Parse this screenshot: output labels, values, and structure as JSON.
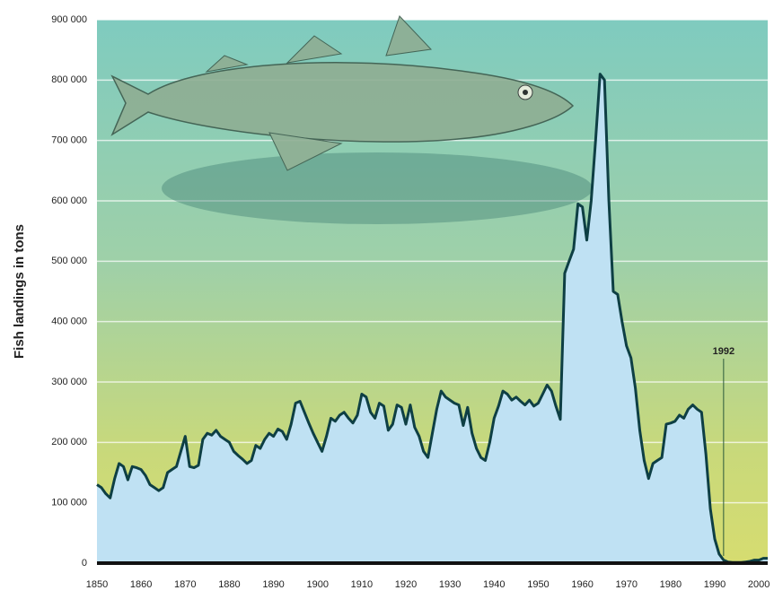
{
  "chart_data": {
    "type": "area",
    "y_label": "Fish landings in tons",
    "x": [
      1850,
      1851,
      1852,
      1853,
      1854,
      1855,
      1856,
      1857,
      1858,
      1859,
      1860,
      1861,
      1862,
      1863,
      1864,
      1865,
      1866,
      1867,
      1868,
      1869,
      1870,
      1871,
      1872,
      1873,
      1874,
      1875,
      1876,
      1877,
      1878,
      1879,
      1880,
      1881,
      1882,
      1883,
      1884,
      1885,
      1886,
      1887,
      1888,
      1889,
      1890,
      1891,
      1892,
      1893,
      1894,
      1895,
      1896,
      1897,
      1898,
      1899,
      1900,
      1901,
      1902,
      1903,
      1904,
      1905,
      1906,
      1907,
      1908,
      1909,
      1910,
      1911,
      1912,
      1913,
      1914,
      1915,
      1916,
      1917,
      1918,
      1919,
      1920,
      1921,
      1922,
      1923,
      1924,
      1925,
      1926,
      1927,
      1928,
      1929,
      1930,
      1931,
      1932,
      1933,
      1934,
      1935,
      1936,
      1937,
      1938,
      1939,
      1940,
      1941,
      1942,
      1943,
      1944,
      1945,
      1946,
      1947,
      1948,
      1949,
      1950,
      1951,
      1952,
      1953,
      1954,
      1955,
      1956,
      1957,
      1958,
      1959,
      1960,
      1961,
      1962,
      1963,
      1964,
      1965,
      1966,
      1967,
      1968,
      1969,
      1970,
      1971,
      1972,
      1973,
      1974,
      1975,
      1976,
      1977,
      1978,
      1979,
      1980,
      1981,
      1982,
      1983,
      1984,
      1985,
      1986,
      1987,
      1988,
      1989,
      1990,
      1991,
      1992,
      1993,
      1994,
      1995,
      1996,
      1997,
      1998,
      1999,
      2000,
      2001,
      2002
    ],
    "values": [
      130000,
      125000,
      115000,
      108000,
      140000,
      165000,
      160000,
      138000,
      160000,
      158000,
      155000,
      145000,
      130000,
      125000,
      120000,
      125000,
      150000,
      155000,
      160000,
      185000,
      210000,
      160000,
      158000,
      162000,
      205000,
      215000,
      212000,
      220000,
      210000,
      205000,
      200000,
      185000,
      178000,
      172000,
      165000,
      170000,
      195000,
      190000,
      205000,
      215000,
      210000,
      222000,
      218000,
      205000,
      230000,
      265000,
      268000,
      250000,
      232000,
      215000,
      200000,
      185000,
      210000,
      240000,
      235000,
      245000,
      250000,
      240000,
      232000,
      245000,
      280000,
      275000,
      250000,
      240000,
      265000,
      260000,
      220000,
      230000,
      262000,
      258000,
      230000,
      262000,
      225000,
      210000,
      185000,
      175000,
      215000,
      255000,
      285000,
      275000,
      270000,
      265000,
      262000,
      228000,
      258000,
      215000,
      190000,
      175000,
      170000,
      200000,
      240000,
      260000,
      285000,
      280000,
      270000,
      275000,
      268000,
      262000,
      270000,
      260000,
      265000,
      280000,
      295000,
      285000,
      260000,
      238000,
      480000,
      500000,
      520000,
      595000,
      590000,
      535000,
      600000,
      700000,
      810000,
      800000,
      600000,
      450000,
      445000,
      400000,
      360000,
      340000,
      290000,
      220000,
      170000,
      140000,
      165000,
      170000,
      175000,
      230000,
      232000,
      235000,
      245000,
      240000,
      255000,
      262000,
      255000,
      250000,
      180000,
      90000,
      40000,
      15000,
      5000,
      2000,
      1000,
      1000,
      1000,
      2000,
      3000,
      5000,
      5000,
      8000,
      8000
    ],
    "color": "#bfe1f3",
    "line_color": "#0e3f44",
    "xlim": [
      1850,
      2002
    ],
    "xticks": [
      1850,
      1860,
      1870,
      1880,
      1890,
      1900,
      1910,
      1920,
      1930,
      1940,
      1950,
      1960,
      1970,
      1980,
      1990,
      2000
    ],
    "ylim": [
      0,
      900000
    ],
    "yticks": [
      0,
      {
        "value": 100000,
        "label": "100 000"
      },
      {
        "value": 200000,
        "label": "200 000"
      },
      {
        "value": 300000,
        "label": "300 000"
      },
      {
        "value": 400000,
        "label": "400 000"
      },
      {
        "value": 500000,
        "label": "500 000"
      },
      {
        "value": 600000,
        "label": "600 000"
      },
      {
        "value": 700000,
        "label": "700 000"
      },
      {
        "value": 800000,
        "label": "800 000"
      },
      {
        "value": 900000,
        "label": "900 000"
      }
    ],
    "grid": true,
    "annotations": [
      {
        "label": "1992",
        "x": 1992
      }
    ]
  }
}
